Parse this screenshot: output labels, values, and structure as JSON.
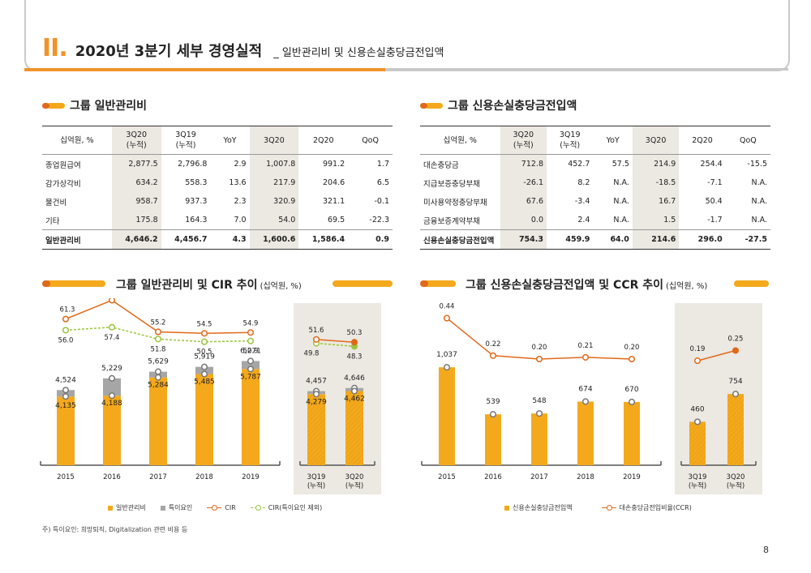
{
  "header": {
    "roman": "II.",
    "title": "2020년 3분기 세부 경영실적",
    "subtitle": "_ 일반관리비 및 신용손실충당금전입액"
  },
  "left_table": {
    "title": "그룹 일반관리비",
    "headers": [
      "십억원, %",
      "3Q20\n(누적)",
      "3Q19\n(누적)",
      "YoY",
      "3Q20",
      "2Q20",
      "QoQ"
    ],
    "rows": [
      [
        "종업원급여",
        "2,877.5",
        "2,796.8",
        "2.9",
        "1,007.8",
        "991.2",
        "1.7"
      ],
      [
        "감가상각비",
        "634.2",
        "558.3",
        "13.6",
        "217.9",
        "204.6",
        "6.5"
      ],
      [
        "물건비",
        "958.7",
        "937.3",
        "2.3",
        "320.9",
        "321.1",
        "-0.1"
      ],
      [
        "기타",
        "175.8",
        "164.3",
        "7.0",
        "54.0",
        "69.5",
        "-22.3"
      ]
    ],
    "total": [
      "일반관리비",
      "4,646.2",
      "4,456.7",
      "4.3",
      "1,600.6",
      "1,586.4",
      "0.9"
    ]
  },
  "right_table": {
    "title": "그룹 신용손실충당금전입액",
    "headers": [
      "십억원, %",
      "3Q20\n(누적)",
      "3Q19\n(누적)",
      "YoY",
      "3Q20",
      "2Q20",
      "QoQ"
    ],
    "rows": [
      [
        "대손충당금",
        "712.8",
        "452.7",
        "57.5",
        "214.9",
        "254.4",
        "-15.5"
      ],
      [
        "지급보증충당부채",
        "-26.1",
        "8.2",
        "N.A.",
        "-18.5",
        "-7.1",
        "N.A."
      ],
      [
        "미사용약정충당부채",
        "67.6",
        "-3.4",
        "N.A.",
        "16.7",
        "50.4",
        "N.A."
      ],
      [
        "금융보증계약부채",
        "0.0",
        "2.4",
        "N.A.",
        "1.5",
        "-1.7",
        "N.A."
      ]
    ],
    "total": [
      "신용손실충당금전입액",
      "754.3",
      "459.9",
      "64.0",
      "214.6",
      "296.0",
      "-27.5"
    ]
  },
  "left_chart_title": {
    "main": "그룹 일반관리비 및 CIR 추이",
    "unit": "(십억원, %)"
  },
  "right_chart_title": {
    "main": "그룹 신용손실충당금전입액 및 CCR 추이",
    "unit": "(십억원, %)"
  },
  "chart_data": [
    {
      "type": "bar",
      "categories": [
        "2015",
        "2016",
        "2017",
        "2018",
        "2019",
        "3Q19\n(누적)",
        "3Q20\n(누적)"
      ],
      "series": [
        {
          "name": "일반관리비",
          "values": [
            4135,
            4188,
            5284,
            5485,
            5787,
            4279,
            4462
          ]
        },
        {
          "name": "특이요인",
          "values": [
            389,
            1041,
            345,
            434,
            484,
            178,
            184
          ]
        },
        {
          "name": "CIR",
          "values": [
            61.3,
            70.2,
            55.2,
            54.5,
            54.9,
            51.6,
            50.3
          ]
        },
        {
          "name": "CIR(특이요인 제외)",
          "values": [
            56.0,
            57.4,
            51.8,
            50.5,
            50.9,
            49.8,
            48.3
          ]
        }
      ],
      "bar_labels_total": [
        "4,524",
        "5,229",
        "5,629",
        "5,919",
        "6,271",
        "4,457",
        "4,646"
      ],
      "bar_labels_base": [
        "4,135",
        "4,188",
        "5,284",
        "5,485",
        "5,787",
        "4,279",
        "4,462"
      ],
      "cir_labels": [
        "61.3",
        "70.2",
        "55.2",
        "54.5",
        "54.9",
        "51.6",
        "50.3"
      ],
      "cir_ex_labels": [
        "56.0",
        "57.4",
        "51.8",
        "50.5",
        "50.9",
        "49.8",
        "48.3"
      ]
    },
    {
      "type": "bar",
      "categories": [
        "2015",
        "2016",
        "2017",
        "2018",
        "2019",
        "3Q19\n(누적)",
        "3Q20\n(누적)"
      ],
      "series": [
        {
          "name": "신용손실충당금전입액",
          "values": [
            1037,
            539,
            548,
            674,
            670,
            460,
            754
          ]
        },
        {
          "name": "대손충당금전입비율(CCR)",
          "values": [
            0.44,
            0.22,
            0.2,
            0.21,
            0.2,
            0.19,
            0.25
          ]
        }
      ],
      "bar_labels": [
        "1,037",
        "539",
        "548",
        "674",
        "670",
        "460",
        "754"
      ],
      "ccr_labels": [
        "0.44",
        "0.22",
        "0.20",
        "0.21",
        "0.20",
        "0.19",
        "0.25"
      ]
    }
  ],
  "legend_left": [
    "일반관리비",
    "특이요인",
    "CIR",
    "CIR(특이요인 제외)"
  ],
  "legend_right": [
    "신용손실충당금전입액",
    "대손충당금전입비율(CCR)"
  ],
  "colors": {
    "orange": "#f4a91c",
    "dark_orange": "#e0691a",
    "gray": "#a6a6a6",
    "green": "#9bc53d",
    "shade": "#ece8e2"
  },
  "footnote": "주) 특이요인: 희망퇴직, Digitalization 관련 비용 등",
  "page_number": "8"
}
